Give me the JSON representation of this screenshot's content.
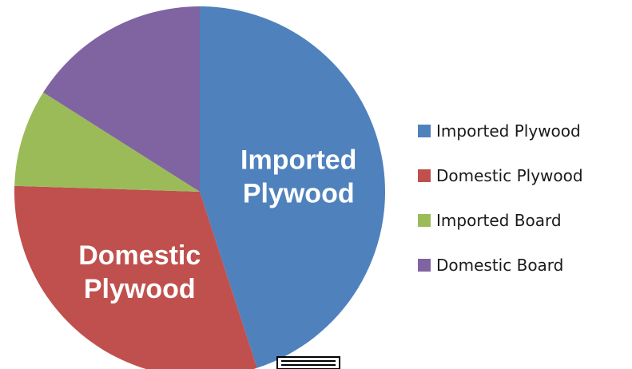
{
  "chart_data": {
    "type": "pie",
    "title": "",
    "slices": [
      {
        "label": "Imported Plywood",
        "value": 45.0,
        "color": "#4f81bd",
        "data_label": [
          "Imported",
          "Plywood"
        ]
      },
      {
        "label": "Domestic Plywood",
        "value": 30.5,
        "color": "#c0504d",
        "data_label": [
          "Domestic",
          "Plywood"
        ]
      },
      {
        "label": "Imported Board",
        "value": 8.5,
        "color": "#9bbb59",
        "data_label": []
      },
      {
        "label": "Domestic Board",
        "value": 16.0,
        "color": "#8064a2",
        "data_label": []
      }
    ],
    "legend_position": "right"
  }
}
